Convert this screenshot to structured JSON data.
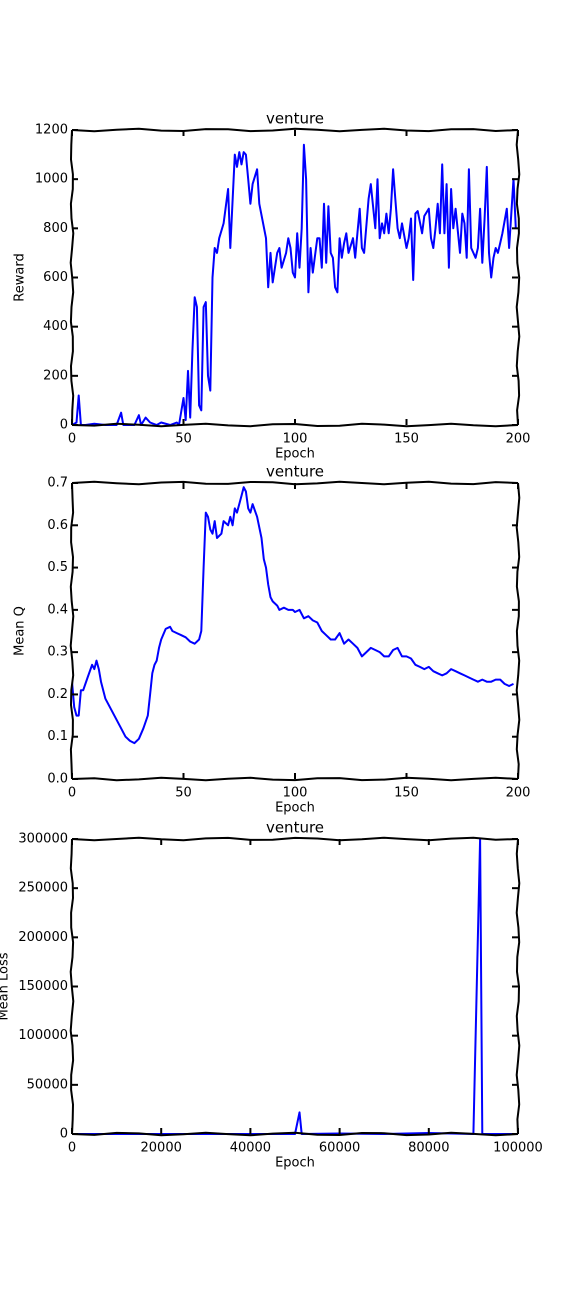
{
  "chart_data": [
    {
      "type": "line",
      "title": "venture",
      "xlabel": "Epoch",
      "ylabel": "Reward",
      "color": "#0000ff",
      "xlim": [
        0,
        200
      ],
      "xticks": [
        0,
        50,
        100,
        150,
        200
      ],
      "ylim": [
        0,
        1200
      ],
      "yticks": [
        0,
        200,
        400,
        600,
        800,
        1000,
        1200
      ],
      "x": [
        0,
        2,
        3,
        4,
        6,
        10,
        15,
        20,
        22,
        23,
        28,
        30,
        31,
        33,
        35,
        38,
        40,
        44,
        47,
        48,
        50,
        51,
        52,
        53,
        54,
        55,
        56,
        57,
        58,
        59,
        60,
        61,
        62,
        63,
        64,
        65,
        66,
        68,
        70,
        71,
        73,
        74,
        75,
        76,
        77,
        78,
        79,
        80,
        81,
        83,
        84,
        87,
        88,
        89,
        90,
        92,
        93,
        94,
        96,
        97,
        98,
        99,
        100,
        101,
        102,
        103,
        104,
        105,
        106,
        107,
        108,
        110,
        111,
        112,
        113,
        114,
        115,
        116,
        117,
        118,
        119,
        120,
        121,
        122,
        123,
        124,
        126,
        127,
        128,
        129,
        130,
        131,
        133,
        134,
        136,
        137,
        138,
        139,
        140,
        141,
        142,
        143,
        144,
        145,
        146,
        147,
        148,
        150,
        151,
        152,
        153,
        154,
        155,
        157,
        158,
        160,
        161,
        162,
        163,
        164,
        165,
        166,
        167,
        168,
        169,
        170,
        171,
        172,
        174,
        175,
        176,
        177,
        178,
        179,
        180,
        181,
        182,
        183,
        184,
        185,
        186,
        187,
        188,
        189,
        190,
        191,
        192,
        193,
        195,
        196,
        198,
        199
      ],
      "values": [
        0,
        10,
        120,
        0,
        0,
        5,
        0,
        0,
        50,
        0,
        0,
        40,
        0,
        30,
        10,
        0,
        10,
        0,
        10,
        0,
        110,
        20,
        220,
        30,
        300,
        520,
        480,
        80,
        60,
        480,
        500,
        200,
        140,
        600,
        720,
        700,
        760,
        820,
        960,
        720,
        1100,
        1050,
        1110,
        1060,
        1110,
        1100,
        1000,
        900,
        980,
        1040,
        900,
        760,
        560,
        700,
        580,
        700,
        720,
        640,
        700,
        760,
        720,
        620,
        600,
        780,
        640,
        800,
        1140,
        1000,
        540,
        720,
        620,
        760,
        760,
        640,
        900,
        660,
        890,
        700,
        680,
        560,
        540,
        760,
        680,
        740,
        780,
        700,
        760,
        680,
        780,
        880,
        720,
        700,
        920,
        980,
        800,
        1000,
        760,
        820,
        780,
        860,
        780,
        880,
        1040,
        920,
        800,
        760,
        820,
        720,
        760,
        840,
        590,
        860,
        870,
        780,
        850,
        880,
        760,
        720,
        800,
        900,
        780,
        1060,
        780,
        980,
        640,
        960,
        800,
        880,
        700,
        860,
        820,
        680,
        1040,
        720,
        700,
        680,
        720,
        880,
        660,
        840,
        1050,
        700,
        600,
        680,
        720,
        700,
        740,
        780,
        880,
        720,
        1000,
        800
      ]
    },
    {
      "type": "line",
      "title": "venture",
      "xlabel": "Epoch",
      "ylabel": "Mean Q",
      "color": "#0000ff",
      "xlim": [
        0,
        200
      ],
      "xticks": [
        0,
        50,
        100,
        150,
        200
      ],
      "ylim": [
        0,
        0.7
      ],
      "yticks": [
        {
          "value": 0,
          "label": "0.0"
        },
        0.1,
        0.2,
        0.3,
        0.4,
        0.5,
        0.6,
        0.7
      ],
      "x": [
        0,
        1,
        2,
        3,
        4,
        5,
        7,
        9,
        10,
        11,
        12,
        13,
        15,
        18,
        20,
        22,
        24,
        26,
        28,
        30,
        32,
        34,
        35,
        36,
        37,
        38,
        39,
        40,
        42,
        44,
        45,
        47,
        49,
        51,
        53,
        55,
        57,
        58,
        59,
        60,
        61,
        62,
        63,
        64,
        65,
        67,
        68,
        70,
        71,
        72,
        73,
        74,
        76,
        77,
        78,
        79,
        80,
        81,
        83,
        85,
        86,
        87,
        88,
        89,
        90,
        92,
        93,
        95,
        97,
        99,
        100,
        102,
        104,
        106,
        108,
        110,
        112,
        114,
        116,
        118,
        120,
        122,
        124,
        126,
        128,
        130,
        132,
        134,
        136,
        138,
        140,
        142,
        144,
        146,
        148,
        150,
        152,
        154,
        156,
        158,
        160,
        162,
        164,
        166,
        168,
        170,
        172,
        174,
        176,
        178,
        180,
        182,
        184,
        186,
        188,
        190,
        192,
        194,
        196,
        198
      ],
      "values": [
        0.23,
        0.17,
        0.15,
        0.15,
        0.21,
        0.21,
        0.24,
        0.27,
        0.26,
        0.28,
        0.26,
        0.23,
        0.19,
        0.16,
        0.14,
        0.12,
        0.1,
        0.09,
        0.085,
        0.095,
        0.12,
        0.15,
        0.2,
        0.25,
        0.27,
        0.28,
        0.31,
        0.33,
        0.355,
        0.36,
        0.35,
        0.345,
        0.34,
        0.335,
        0.325,
        0.32,
        0.33,
        0.35,
        0.5,
        0.63,
        0.62,
        0.59,
        0.58,
        0.61,
        0.57,
        0.58,
        0.61,
        0.6,
        0.62,
        0.6,
        0.64,
        0.63,
        0.67,
        0.69,
        0.68,
        0.64,
        0.63,
        0.65,
        0.62,
        0.57,
        0.52,
        0.5,
        0.46,
        0.43,
        0.42,
        0.41,
        0.4,
        0.405,
        0.4,
        0.4,
        0.395,
        0.4,
        0.38,
        0.385,
        0.375,
        0.37,
        0.35,
        0.34,
        0.33,
        0.33,
        0.345,
        0.32,
        0.33,
        0.32,
        0.31,
        0.29,
        0.3,
        0.31,
        0.305,
        0.3,
        0.29,
        0.29,
        0.305,
        0.31,
        0.29,
        0.29,
        0.285,
        0.27,
        0.265,
        0.26,
        0.265,
        0.255,
        0.25,
        0.245,
        0.25,
        0.26,
        0.255,
        0.25,
        0.245,
        0.24,
        0.235,
        0.23,
        0.235,
        0.23,
        0.23,
        0.235,
        0.235,
        0.225,
        0.22,
        0.225
      ]
    },
    {
      "type": "line",
      "title": "venture",
      "xlabel": "Epoch",
      "ylabel": "Mean Loss",
      "color": "#0000ff",
      "xlim": [
        0,
        100000
      ],
      "xticks": [
        0,
        20000,
        40000,
        60000,
        80000,
        100000
      ],
      "ylim": [
        0,
        300000
      ],
      "yticks": [
        0,
        50000,
        100000,
        150000,
        200000,
        250000,
        300000
      ],
      "x": [
        0,
        50000,
        51000,
        51500,
        60000,
        70000,
        80000,
        90000,
        91500,
        92000,
        100000
      ],
      "values": [
        0,
        0,
        22000,
        0,
        500,
        0,
        1000,
        0,
        300000,
        0,
        0
      ]
    }
  ]
}
